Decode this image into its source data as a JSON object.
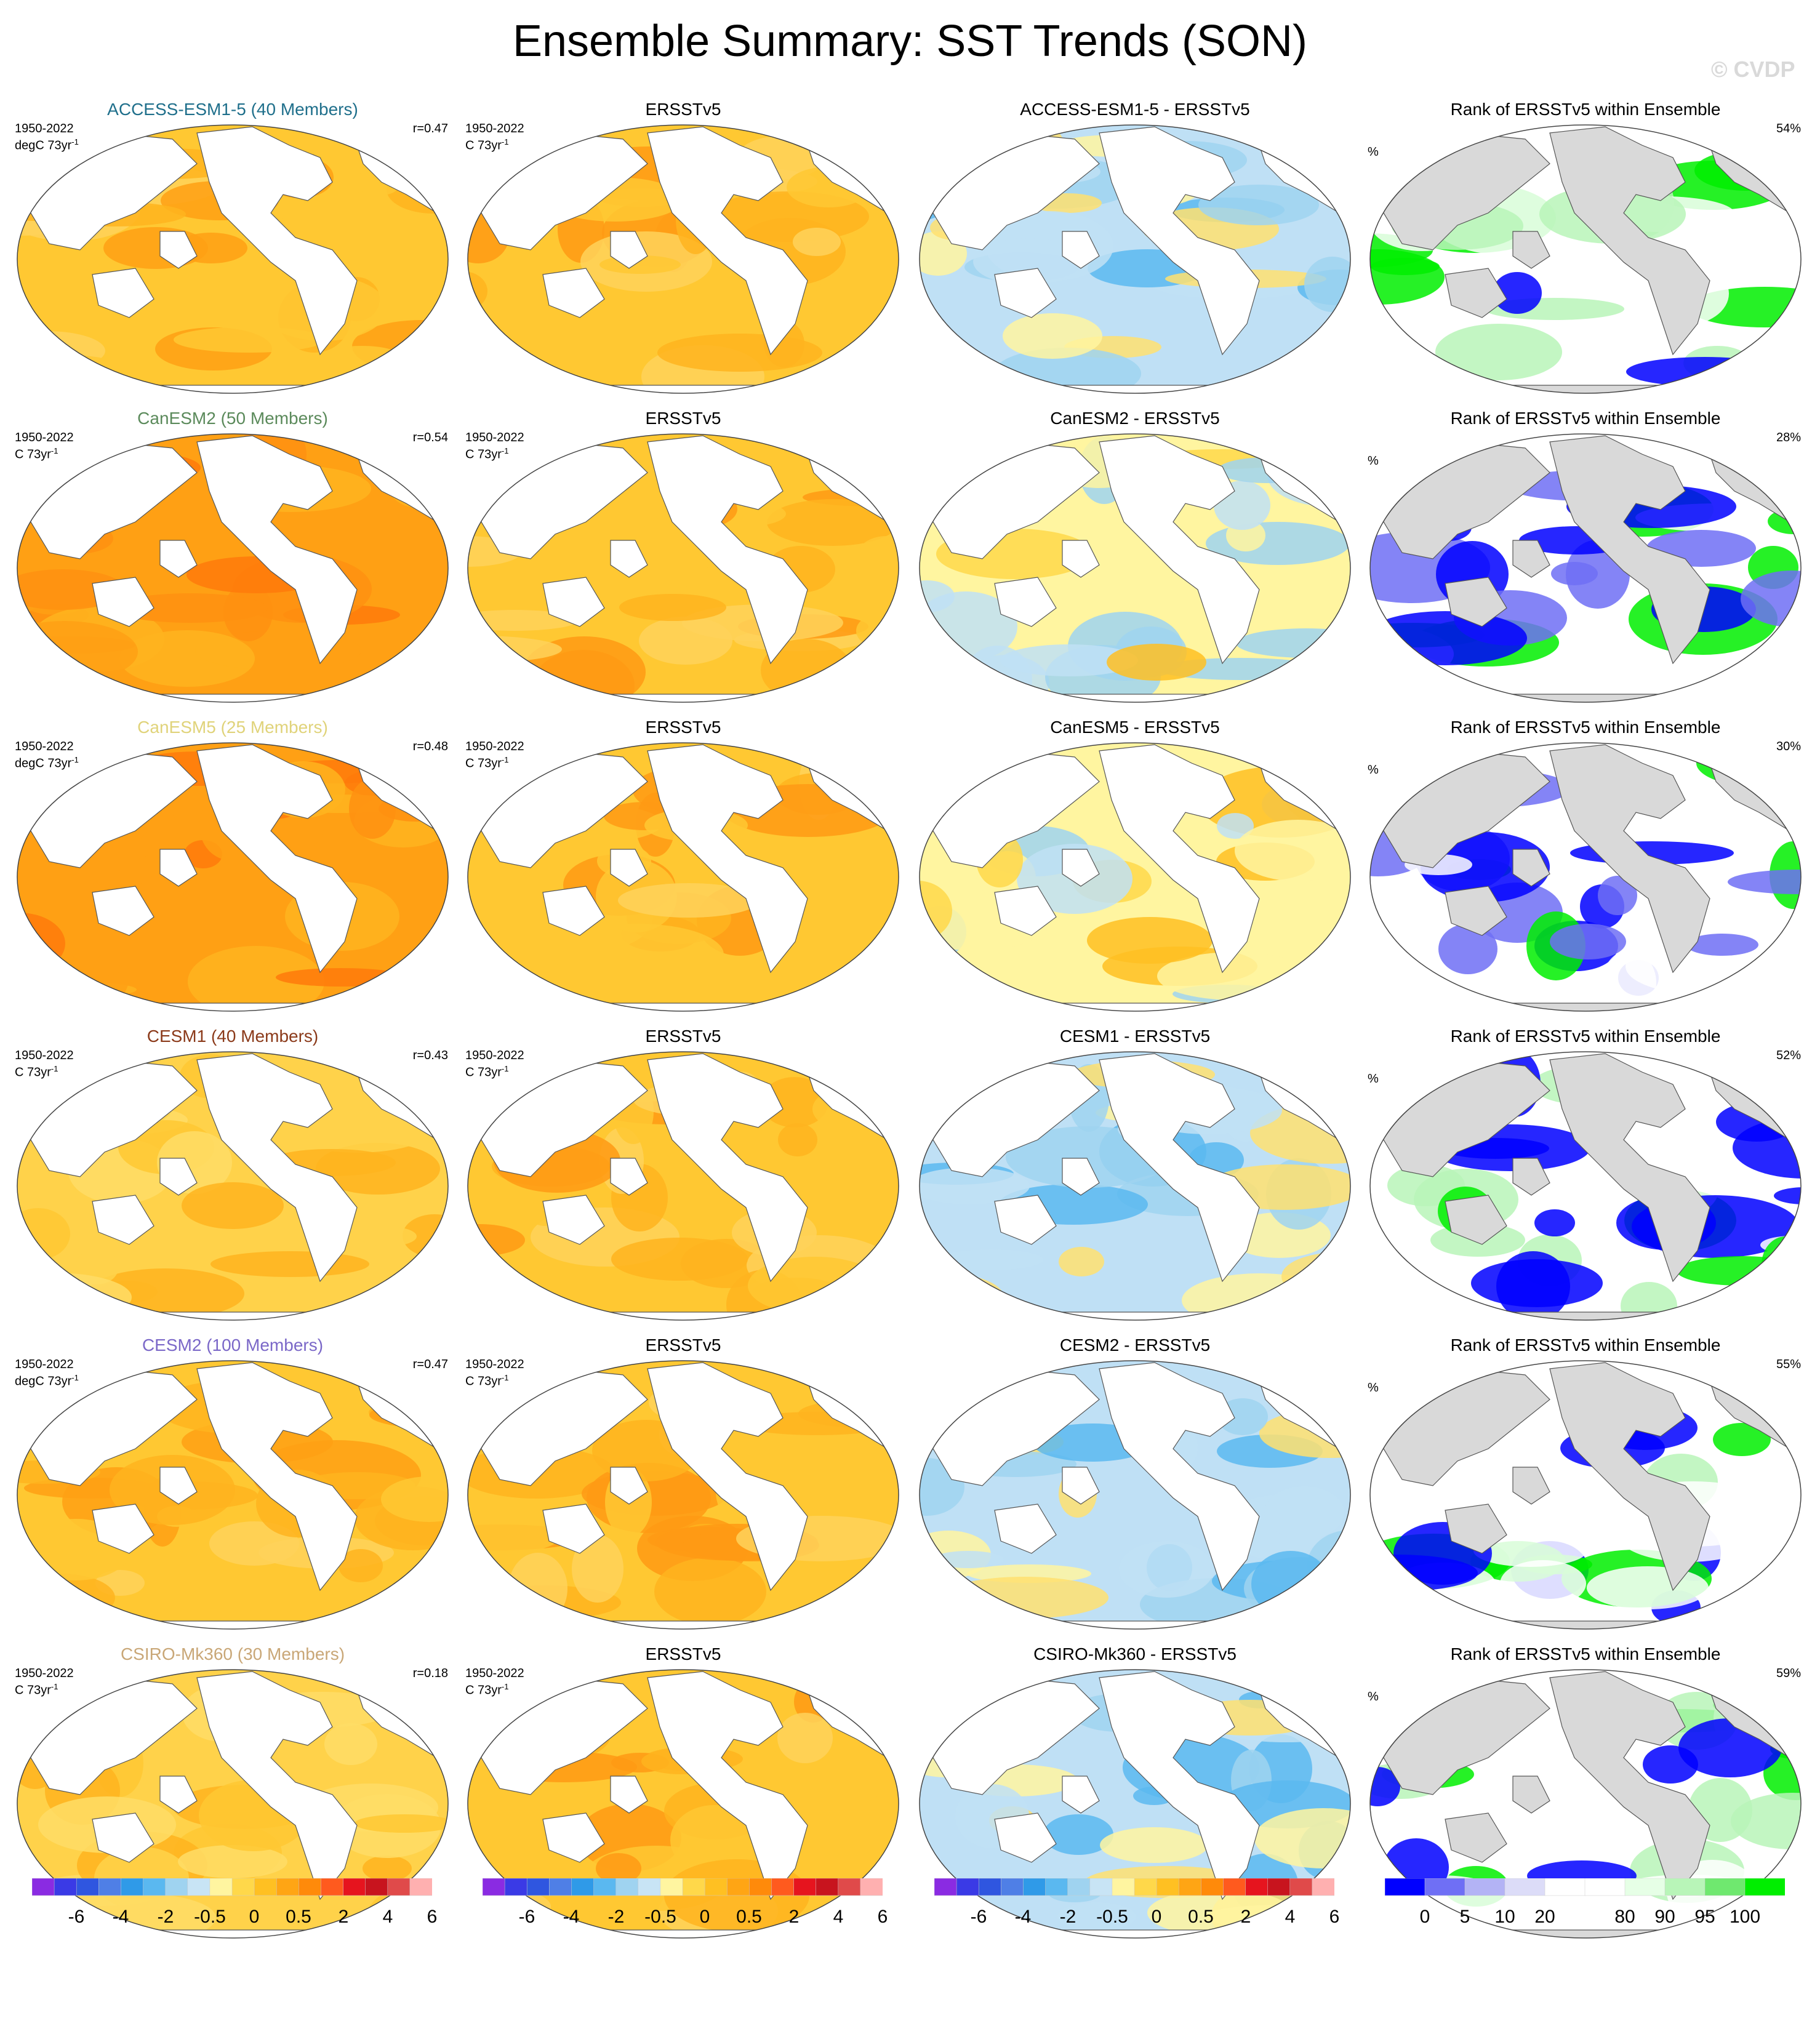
{
  "title": "Ensemble Summary: SST Trends (SON)",
  "watermark": "© CVDP",
  "rows": [
    {
      "model": "ACCESS-ESM1-5 (40 Members)",
      "model_color": "#1f6f8b",
      "units": "degC",
      "r": "r=0.47",
      "diff_title": "ACCESS-ESM1-5 - ERSSTv5",
      "rank_pct": "54%",
      "tone": "warm"
    },
    {
      "model": "CanESM2 (50 Members)",
      "model_color": "#5b8a5b",
      "units": "C",
      "r": "r=0.54",
      "diff_title": "CanESM2 - ERSSTv5",
      "rank_pct": "28%",
      "tone": "hot"
    },
    {
      "model": "CanESM5 (25 Members)",
      "model_color": "#e0d37a",
      "units": "degC",
      "r": "r=0.48",
      "diff_title": "CanESM5 - ERSSTv5",
      "rank_pct": "30%",
      "tone": "hot"
    },
    {
      "model": "CESM1 (40 Members)",
      "model_color": "#8b3a1a",
      "units": "C",
      "r": "r=0.43",
      "diff_title": "CESM1 - ERSSTv5",
      "rank_pct": "52%",
      "tone": "mild"
    },
    {
      "model": "CESM2 (100 Members)",
      "model_color": "#7b68c8",
      "units": "degC",
      "r": "r=0.47",
      "diff_title": "CESM2 - ERSSTv5",
      "rank_pct": "55%",
      "tone": "warm"
    },
    {
      "model": "CSIRO-Mk360 (30 Members)",
      "model_color": "#c9a777",
      "units": "C",
      "r": "r=0.18",
      "diff_title": "CSIRO-Mk360 - ERSSTv5",
      "rank_pct": "59%",
      "tone": "mild"
    }
  ],
  "common": {
    "period": "1950-2022",
    "trend_unit": "73yr",
    "trend_exp": "-1",
    "obs_title": "ERSSTv5",
    "obs_units": "C",
    "rank_title": "Rank of ERSSTv5 within Ensemble",
    "pct_label": "%"
  },
  "colorbar_trend": {
    "colors": [
      "#8a2be2",
      "#3a3ae6",
      "#2f56e0",
      "#4f7fe6",
      "#2f9ae8",
      "#5ab8f0",
      "#9fd3f0",
      "#c8e4f5",
      "#fff5a0",
      "#ffd84a",
      "#ffc022",
      "#ffa514",
      "#ff8a0a",
      "#ff5a1e",
      "#e6141e",
      "#c8141e",
      "#e04a4a",
      "#ffb0b0"
    ],
    "labels": [
      "-6",
      "-4",
      "-2",
      "-0.5",
      "0",
      "0.5",
      "2",
      "4",
      "6"
    ]
  },
  "colorbar_rank": {
    "colors": [
      "#0000ff",
      "#6f6ff5",
      "#b3b3f5",
      "#dcdcf8",
      "#ffffff",
      "#ffffff",
      "#e6ffe6",
      "#b8f5b8",
      "#6fe86f",
      "#00ee00"
    ],
    "labels": [
      "0",
      "5",
      "10",
      "20",
      "80",
      "90",
      "95",
      "100"
    ]
  }
}
